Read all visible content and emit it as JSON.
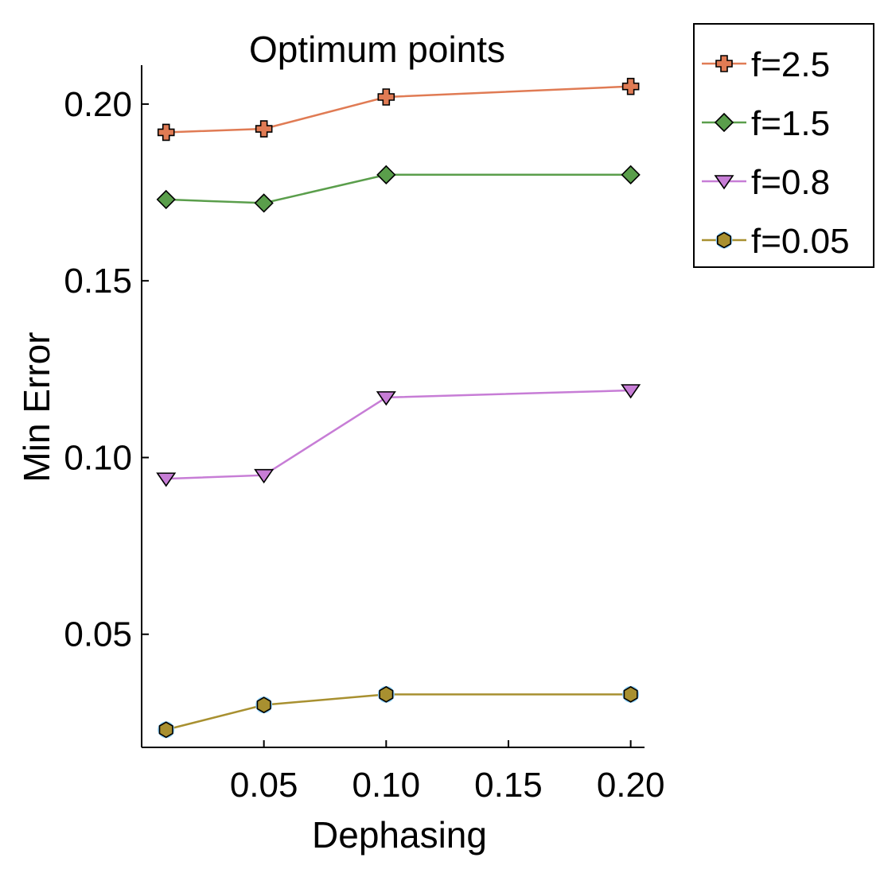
{
  "chart_data": {
    "type": "line",
    "title": "Optimum points",
    "xlabel": "Dephasing",
    "ylabel": "Min Error",
    "x": [
      0.01,
      0.05,
      0.1,
      0.2
    ],
    "xlim": [
      0.0,
      0.205
    ],
    "ylim": [
      0.018,
      0.211
    ],
    "xticks": [
      0.05,
      0.1,
      0.15,
      0.2
    ],
    "xtick_labels": [
      "0.05",
      "0.10",
      "0.15",
      "0.20"
    ],
    "yticks": [
      0.05,
      0.1,
      0.15,
      0.2
    ],
    "ytick_labels": [
      "0.05",
      "0.10",
      "0.15",
      "0.20"
    ],
    "grid": false,
    "legend_position": "outside-top-right",
    "series": [
      {
        "name": "f=2.5",
        "values": [
          0.192,
          0.193,
          0.202,
          0.205
        ],
        "color": "#e07b54",
        "marker": "cross"
      },
      {
        "name": "f=1.5",
        "values": [
          0.173,
          0.172,
          0.18,
          0.18
        ],
        "color": "#5a9e4b",
        "marker": "diamond"
      },
      {
        "name": "f=0.8",
        "values": [
          0.094,
          0.095,
          0.117,
          0.119
        ],
        "color": "#c77dd6",
        "marker": "triangle-down"
      },
      {
        "name": "f=0.05",
        "values": [
          0.023,
          0.03,
          0.033,
          0.033
        ],
        "color": "#a89030",
        "marker": "hexagon"
      }
    ]
  }
}
